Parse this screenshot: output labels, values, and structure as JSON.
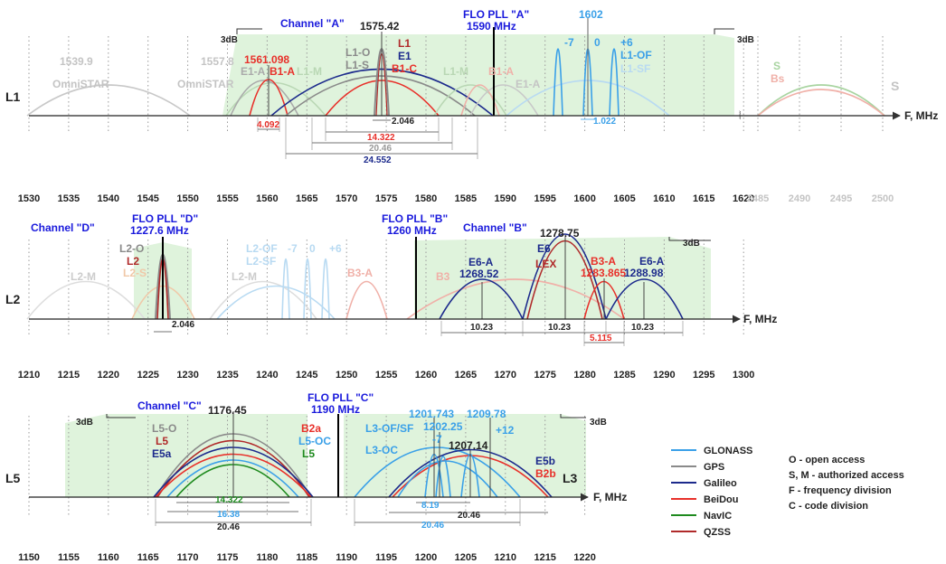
{
  "colors": {
    "GLONASS": "#3aa0e8",
    "GPS": "#8a8a8a",
    "Galileo": "#1c2a8c",
    "BeiDou": "#e8302a",
    "NavIC": "#1e8a1e",
    "QZSS": "#b02a2a",
    "band_fill": "#dff3dc",
    "channel_label": "#1a1adc"
  },
  "units": "F, MHz",
  "bands": {
    "L1": {
      "name": "L1",
      "ticks": [
        "1530",
        "1535",
        "1540",
        "1545",
        "1550",
        "1555",
        "1560",
        "1565",
        "1570",
        "1575",
        "1580",
        "1585",
        "1590",
        "1595",
        "1600",
        "1605",
        "1610",
        "1615",
        "1620"
      ],
      "s_ticks": [
        "2485",
        "2490",
        "2495",
        "2500"
      ],
      "channel": "Channel \"A\"",
      "pll": "FLO PLL \"A\"",
      "pll_freq": "1590 MHz",
      "center": "1575.42",
      "db_left": "3dB",
      "db_right": "3dB",
      "s_label": "S",
      "labels": {
        "omni1_freq": "1539.9",
        "omni1": "OmniSTAR",
        "omni2_freq": "1557.8",
        "omni2": "OmniSTAR",
        "b1a_freq": "1561.098",
        "e1a_left": "E1-A",
        "b1a_left": "B1-A",
        "l1m_left": "L1-M",
        "l1o": "L1-O",
        "l1s": "L1-S",
        "l1": "L1",
        "e1": "E1",
        "b1c": "B1-C",
        "l1m_right": "L1-M",
        "b1a_right": "B1-A",
        "e1a_right": "E1-A",
        "glo_freq": "1602",
        "glo_m7": "-7",
        "glo_0": "0",
        "glo_p6": "+6",
        "l1of": "L1-OF",
        "l1sf": "L1-SF",
        "s_gps": "S",
        "s_bei": "Bs"
      },
      "bw": {
        "b1a": "4.092",
        "c2046": "2.046",
        "b1c": "14.322",
        "l1s": "20.46",
        "e1": "24.552",
        "glo": "1.022"
      }
    },
    "L2": {
      "name": "L2",
      "ticks": [
        "1210",
        "1215",
        "1220",
        "1225",
        "1230",
        "1235",
        "1240",
        "1245",
        "1250",
        "1255",
        "1260",
        "1265",
        "1270",
        "1275",
        "1280",
        "1285",
        "1290",
        "1295",
        "1300"
      ],
      "channel_d": "Channel \"D\"",
      "pll_d": "FLO PLL \"D\"",
      "pll_d_freq": "1227.6 MHz",
      "pll_b": "FLO PLL \"B\"",
      "pll_b_freq": "1260 MHz",
      "channel_b": "Channel \"B\"",
      "center_e6": "1278.75",
      "db": "3dB",
      "labels": {
        "l2o": "L2-O",
        "l2": "L2",
        "l2s": "L2-S",
        "l2m_left": "L2-M",
        "l2m_right": "L2-M",
        "l2of": "L2-OF",
        "l2sf": "L2-SF",
        "glo_m7": "-7",
        "glo_0": "0",
        "glo_p6": "+6",
        "b3a_left": "B3-A",
        "b3": "B3",
        "e6a_left": "E6-A",
        "e6a_left_freq": "1268.52",
        "e6": "E6",
        "lex": "LEX",
        "b3a": "B3-A",
        "b3a_freq": "1283.865",
        "e6a_right": "E6-A",
        "e6a_right_freq": "1288.98"
      },
      "bw": {
        "l2c": "2.046",
        "e6a_left": "10.23",
        "e6": "10.23",
        "e6a_right": "10.23",
        "b3a": "5.115"
      }
    },
    "L5": {
      "name": "L5",
      "right_name": "L3",
      "ticks": [
        "1150",
        "1155",
        "1160",
        "1165",
        "1170",
        "1175",
        "1180",
        "1185",
        "1190",
        "1195",
        "1200",
        "1205",
        "1210",
        "1215",
        "1220"
      ],
      "channel": "Channel \"C\"",
      "center": "1176.45",
      "pll": "FLO PLL \"C\"",
      "pll_freq": "1190 MHz",
      "db_left": "3dB",
      "db_right": "3dB",
      "labels": {
        "l5o": "L5-O",
        "l5": "L5",
        "e5a": "E5a",
        "b2a": "B2a",
        "l5oc": "L5-OC",
        "l5_navic": "L5",
        "l3ofsf": "L3-OF/SF",
        "l3oc": "L3-OC",
        "glo_freq1": "1201.743",
        "glo_freq2": "1209.78",
        "glo_freq3": "1202.25",
        "glo_m7": "-7",
        "glo_p12": "+12",
        "e5b_center": "1207.14",
        "e5b": "E5b",
        "b2b": "B2b"
      },
      "bw": {
        "navic": "14.322",
        "l5oc": "16.38",
        "e5a": "20.46",
        "l3": "8.19",
        "e5b": "20.46",
        "l3oc": "20.46"
      }
    }
  },
  "legend": [
    {
      "name": "GLONASS",
      "color": "#3aa0e8"
    },
    {
      "name": "GPS",
      "color": "#8a8a8a"
    },
    {
      "name": "Galileo",
      "color": "#1c2a8c"
    },
    {
      "name": "BeiDou",
      "color": "#e8302a"
    },
    {
      "name": "NavIC",
      "color": "#1e8a1e"
    },
    {
      "name": "QZSS",
      "color": "#b02a2a"
    }
  ],
  "notes": [
    "O - open access",
    "S, M - authorized access",
    "F - frequency division",
    "C - code division"
  ]
}
